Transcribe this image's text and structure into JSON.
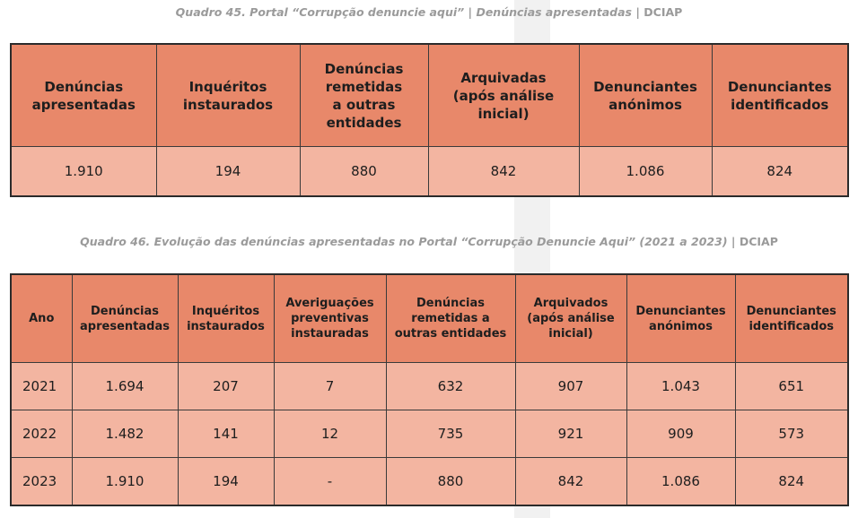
{
  "quadro45": {
    "caption_main": "Quadro 45.  Portal “Corrupção denuncie aqui” | Denúncias apresentadas",
    "caption_tail": "| DCIAP",
    "headers": [
      "Denúncias apresentadas",
      "Inquéritos instaurados",
      "Denúncias remetidas a outras entidades",
      "Arquivadas (após análise inicial)",
      "Denunciantes anónimos",
      "Denunciantes identificados"
    ],
    "row": [
      "1.910",
      "194",
      "880",
      "842",
      "1.086",
      "824"
    ]
  },
  "quadro46": {
    "caption_main": "Quadro 46.  Evolução das denúncias apresentadas no Portal “Corrupção Denuncie Aqui” (2021 a 2023)",
    "caption_tail": "| DCIAP",
    "headers": [
      "Ano",
      "Denúncias apresentadas",
      "Inquéritos instaurados",
      "Averiguações preventivas instauradas",
      "Denúncias remetidas a outras entidades",
      "Arquivados (após análise inicial)",
      "Denunciantes anónimos",
      "Denunciantes identificados"
    ],
    "rows": [
      [
        "2021",
        "1.694",
        "207",
        "7",
        "632",
        "907",
        "1.043",
        "651"
      ],
      [
        "2022",
        "1.482",
        "141",
        "12",
        "735",
        "921",
        "909",
        "573"
      ],
      [
        "2023",
        "1.910",
        "194",
        "-",
        "880",
        "842",
        "1.086",
        "824"
      ]
    ]
  }
}
